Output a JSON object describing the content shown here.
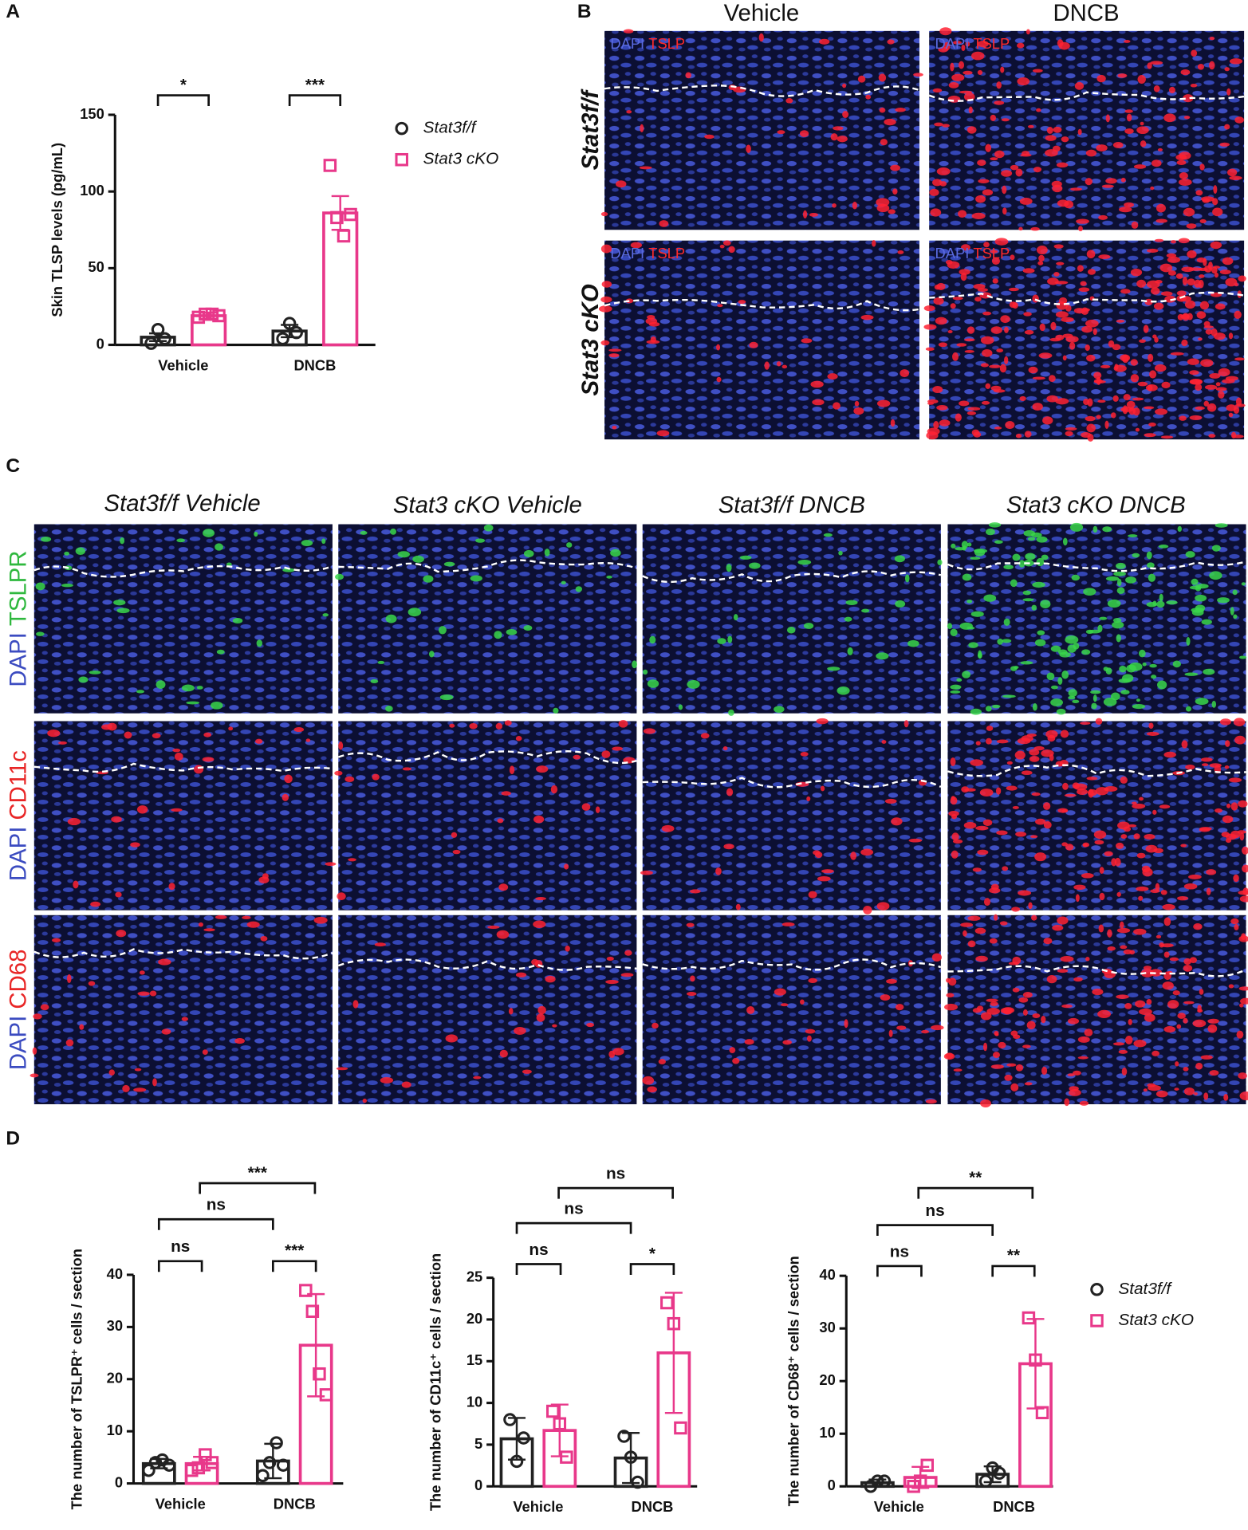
{
  "panel_labels": [
    "A",
    "B",
    "C",
    "D"
  ],
  "panel_b": {
    "columns": [
      "Vehicle",
      "DNCB"
    ],
    "rows": [
      "Stat3f/f",
      "Stat3 cKO"
    ],
    "stain": [
      "DAPI",
      "TSLP"
    ]
  },
  "panel_c": {
    "columns": [
      "Stat3f/f Vehicle",
      "Stat3 cKO Vehicle",
      "Stat3f/f DNCB",
      "Stat3 cKO DNCB"
    ],
    "rows": [
      [
        "DAPI",
        "TSLPR"
      ],
      [
        "DAPI",
        "CD11c"
      ],
      [
        "DAPI",
        "CD68"
      ]
    ]
  },
  "chart_data": [
    {
      "type": "bar",
      "ylabel": "Skin TLSP levels (pg/mL)",
      "categories": [
        "Vehicle",
        "DNCB"
      ],
      "ylim": [
        0,
        150
      ],
      "yticks": [
        0,
        50,
        100,
        150
      ],
      "legend": true,
      "series": [
        {
          "name": "Stat3f/f",
          "color": "#222222",
          "marker": "circle",
          "values": [
            5,
            9
          ],
          "errors": [
            2.5,
            4
          ],
          "points": [
            [
              1,
              10,
              4
            ],
            [
              4,
              14,
              8
            ]
          ]
        },
        {
          "name": "Stat3 cKO",
          "color": "#e8388a",
          "marker": "square",
          "values": [
            19,
            86
          ],
          "errors": [
            2,
            11
          ],
          "points": [
            [
              18,
              20,
              20,
              19
            ],
            [
              117,
              83,
              71,
              85
            ]
          ]
        }
      ],
      "annotations": [
        "*",
        "***"
      ]
    },
    {
      "type": "bar",
      "ylabel": "The number of TSLPR⁺ cells / section",
      "categories": [
        "Vehicle",
        "DNCB"
      ],
      "ylim": [
        0,
        40
      ],
      "yticks": [
        0,
        10,
        20,
        30,
        40
      ],
      "legend": false,
      "series": [
        {
          "color": "#222222",
          "marker": "circle",
          "values": [
            3.8,
            4.3
          ],
          "errors": [
            0.9,
            3.3
          ],
          "points": [
            [
              2.5,
              4,
              4.5,
              3.5
            ],
            [
              1.5,
              4,
              7.8,
              3.5
            ]
          ]
        },
        {
          "color": "#e8388a",
          "marker": "square",
          "values": [
            3.8,
            26.5
          ],
          "errors": [
            1.3,
            9.8
          ],
          "points": [
            [
              2.5,
              3,
              5.5,
              4
            ],
            [
              37,
              33,
              21,
              17
            ]
          ]
        }
      ],
      "annotations": [
        "ns",
        "***",
        "ns",
        "***"
      ]
    },
    {
      "type": "bar",
      "ylabel": "The number of CD11c⁺ cells / section",
      "categories": [
        "Vehicle",
        "DNCB"
      ],
      "ylim": [
        0,
        25
      ],
      "yticks": [
        0,
        5,
        10,
        15,
        20,
        25
      ],
      "legend": false,
      "series": [
        {
          "color": "#222222",
          "marker": "circle",
          "values": [
            5.7,
            3.4
          ],
          "errors": [
            2.5,
            3
          ],
          "points": [
            [
              8,
              3,
              5.8
            ],
            [
              6,
              3.5,
              0.5
            ]
          ]
        },
        {
          "color": "#e8388a",
          "marker": "square",
          "values": [
            6.7,
            16
          ],
          "errors": [
            3.1,
            7.2
          ],
          "points": [
            [
              9,
              7.5,
              3.5
            ],
            [
              22,
              19.5,
              7
            ]
          ]
        }
      ],
      "annotations": [
        "ns",
        "*",
        "ns",
        "ns"
      ]
    },
    {
      "type": "bar",
      "ylabel": "The number of CD68⁺ cells / section",
      "categories": [
        "Vehicle",
        "DNCB"
      ],
      "ylim": [
        0,
        40
      ],
      "yticks": [
        0,
        10,
        20,
        30,
        40
      ],
      "legend": true,
      "series": [
        {
          "name": "Stat3f/f",
          "color": "#222222",
          "marker": "circle",
          "values": [
            0.7,
            2.3
          ],
          "errors": [
            0.6,
            1.5
          ],
          "points": [
            [
              0,
              1,
              1
            ],
            [
              1,
              3.5,
              2.5
            ]
          ]
        },
        {
          "name": "Stat3 cKO",
          "color": "#e8388a",
          "marker": "square",
          "values": [
            1.7,
            23.3
          ],
          "errors": [
            2,
            8.5
          ],
          "points": [
            [
              0,
              1,
              4
            ],
            [
              32,
              24,
              14
            ]
          ]
        }
      ],
      "annotations": [
        "ns",
        "**",
        "ns",
        "**"
      ]
    }
  ]
}
